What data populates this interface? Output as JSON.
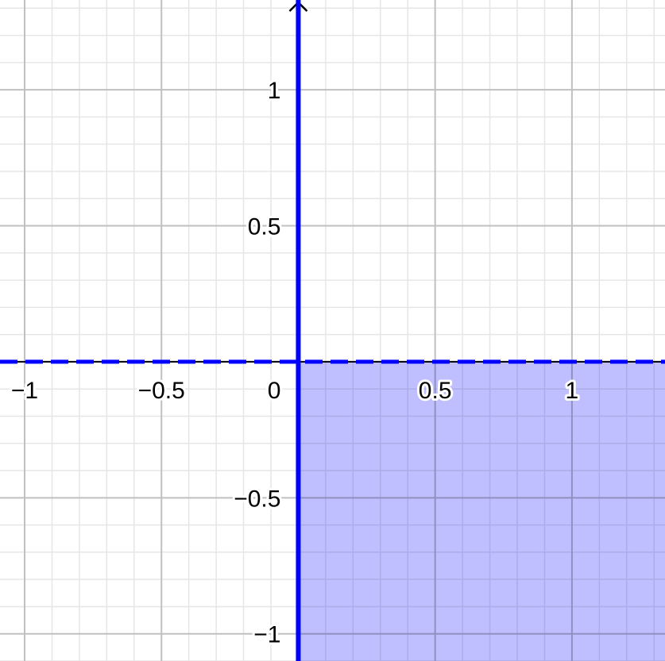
{
  "graph": {
    "x_range": [
      -1.09,
      1.34
    ],
    "y_range": [
      -1.1,
      1.33
    ],
    "major_step": 0.5,
    "minor_step": 0.1,
    "x_tick_labels": [
      {
        "value": -1,
        "text": "−1"
      },
      {
        "value": -0.5,
        "text": "−0.5"
      },
      {
        "value": 0.5,
        "text": "0.5"
      },
      {
        "value": 1,
        "text": "1"
      }
    ],
    "y_tick_labels": [
      {
        "value": 1,
        "text": "1"
      },
      {
        "value": 0.5,
        "text": "0.5"
      },
      {
        "value": -0.5,
        "text": "−0.5"
      },
      {
        "value": -1,
        "text": "−1"
      }
    ],
    "origin_label": "0",
    "colors": {
      "region_fill": "#bcbcff",
      "boundary": "#0000ff",
      "axis": "#000000",
      "grid_major": "#c0c0c0",
      "grid_minor": "#e6e6e6"
    },
    "region": {
      "x_min": 0,
      "y_max": 0
    },
    "boundaries": [
      {
        "type": "vertical",
        "at": 0,
        "style": "solid"
      },
      {
        "type": "horizontal",
        "at": 0,
        "style": "dashed"
      }
    ]
  }
}
